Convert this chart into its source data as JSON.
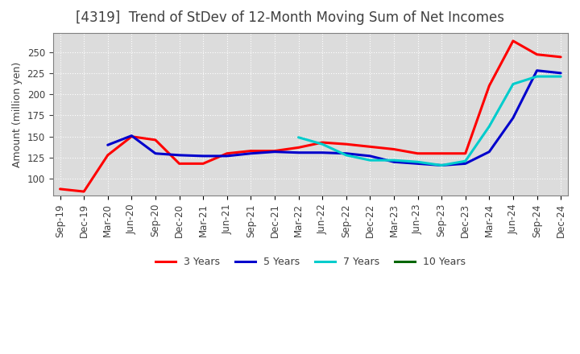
{
  "title": "[4319]  Trend of StDev of 12-Month Moving Sum of Net Incomes",
  "ylabel": "Amount (million yen)",
  "x_labels": [
    "Sep-19",
    "Dec-19",
    "Mar-20",
    "Jun-20",
    "Sep-20",
    "Dec-20",
    "Mar-21",
    "Jun-21",
    "Sep-21",
    "Dec-21",
    "Mar-22",
    "Jun-22",
    "Sep-22",
    "Dec-22",
    "Mar-23",
    "Jun-23",
    "Sep-23",
    "Dec-23",
    "Mar-24",
    "Jun-24",
    "Sep-24",
    "Dec-24"
  ],
  "ylim": [
    80,
    272
  ],
  "yticks": [
    100,
    125,
    150,
    175,
    200,
    225,
    250
  ],
  "series": {
    "3 Years": {
      "color": "#FF0000",
      "linewidth": 2.2,
      "data_x": [
        0,
        1,
        2,
        3,
        4,
        5,
        6,
        7,
        8,
        9,
        10,
        11,
        12,
        13,
        14,
        15,
        16,
        17,
        18,
        19,
        20,
        21
      ],
      "data_y": [
        88,
        85,
        128,
        150,
        146,
        118,
        118,
        130,
        133,
        133,
        137,
        143,
        141,
        138,
        135,
        130,
        130,
        130,
        210,
        263,
        247,
        244
      ]
    },
    "5 Years": {
      "color": "#0000CC",
      "linewidth": 2.2,
      "data_x": [
        2,
        3,
        4,
        5,
        6,
        7,
        8,
        9,
        10,
        11,
        12,
        13,
        14,
        15,
        16,
        17,
        18,
        19,
        20,
        21
      ],
      "data_y": [
        140,
        151,
        130,
        128,
        127,
        127,
        130,
        132,
        131,
        131,
        130,
        127,
        120,
        118,
        116,
        118,
        132,
        172,
        228,
        225
      ]
    },
    "7 Years": {
      "color": "#00CCCC",
      "linewidth": 2.2,
      "data_x": [
        10,
        11,
        12,
        13,
        14,
        15,
        16,
        17,
        18,
        19,
        20,
        21
      ],
      "data_y": [
        149,
        141,
        128,
        122,
        122,
        120,
        116,
        121,
        162,
        212,
        221,
        221
      ]
    },
    "10 Years": {
      "color": "#006600",
      "linewidth": 2.2,
      "data_x": [],
      "data_y": []
    }
  },
  "background_color": "#FFFFFF",
  "plot_bg_color": "#DCDCDC",
  "grid_color": "#FFFFFF",
  "title_color": "#404040",
  "title_fontsize": 12,
  "label_fontsize": 9,
  "tick_fontsize": 8.5,
  "legend_fontsize": 9
}
